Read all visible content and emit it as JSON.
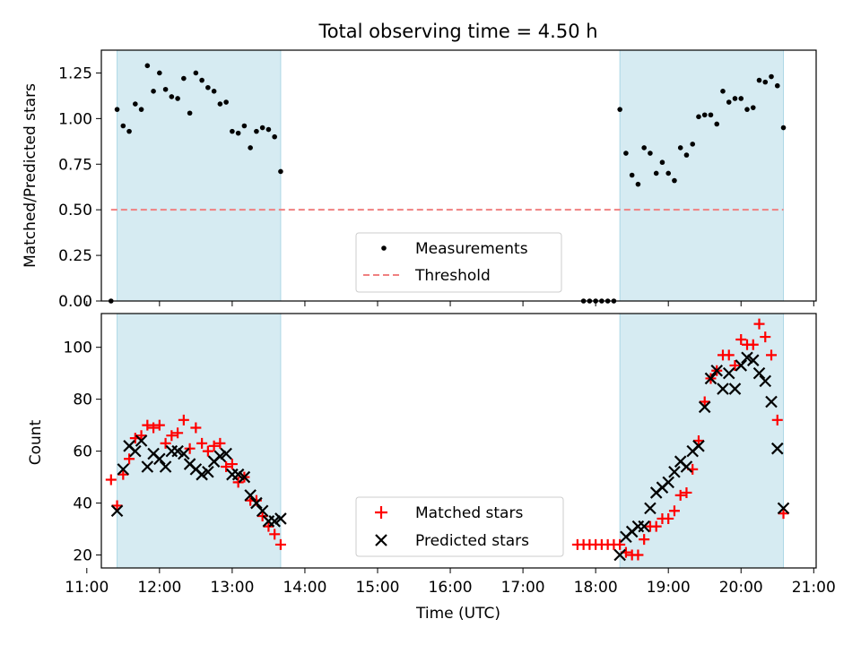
{
  "title": "Total observing time = 4.50 h",
  "chart_data": [
    {
      "type": "scatter",
      "ylabel": "Matched/Predicted stars",
      "ylim": [
        0,
        1.375
      ],
      "yticks": [
        "0.00",
        "0.25",
        "0.50",
        "0.75",
        "1.00",
        "1.25"
      ],
      "ytick_values": [
        0,
        0.25,
        0.5,
        0.75,
        1.0,
        1.25
      ],
      "xlim": [
        "11:12",
        "21:02"
      ],
      "shaded_intervals": [
        [
          "11:25",
          "13:40"
        ],
        [
          "18:20",
          "20:35"
        ]
      ],
      "threshold": {
        "y": 0.5,
        "x": [
          "11:20",
          "20:35"
        ]
      },
      "legend": {
        "position": "lower center",
        "entries": [
          "Measurements",
          "Threshold"
        ]
      },
      "series": [
        {
          "name": "Measurements",
          "x": [
            "11:20",
            "11:25",
            "11:30",
            "11:35",
            "11:40",
            "11:45",
            "11:50",
            "11:55",
            "12:00",
            "12:05",
            "12:10",
            "12:15",
            "12:20",
            "12:25",
            "12:30",
            "12:35",
            "12:40",
            "12:45",
            "12:50",
            "12:55",
            "13:00",
            "13:05",
            "13:10",
            "13:15",
            "13:20",
            "13:25",
            "13:30",
            "13:35",
            "13:40",
            "17:50",
            "17:55",
            "18:00",
            "18:05",
            "18:10",
            "18:15",
            "18:20",
            "18:25",
            "18:30",
            "18:35",
            "18:40",
            "18:45",
            "18:50",
            "18:55",
            "19:00",
            "19:05",
            "19:10",
            "19:15",
            "19:20",
            "19:25",
            "19:30",
            "19:35",
            "19:40",
            "19:45",
            "19:50",
            "19:55",
            "20:00",
            "20:05",
            "20:10",
            "20:15",
            "20:20",
            "20:25",
            "20:30",
            "20:35"
          ],
          "values": [
            0.0,
            1.05,
            0.96,
            0.93,
            1.08,
            1.05,
            1.29,
            1.15,
            1.25,
            1.16,
            1.12,
            1.11,
            1.22,
            1.03,
            1.25,
            1.21,
            1.17,
            1.15,
            1.08,
            1.09,
            0.93,
            0.92,
            0.96,
            0.84,
            0.93,
            0.95,
            0.94,
            0.9,
            0.71,
            0.0,
            0.0,
            0.0,
            0.0,
            0.0,
            0.0,
            1.05,
            0.81,
            0.69,
            0.64,
            0.84,
            0.81,
            0.7,
            0.76,
            0.7,
            0.66,
            0.84,
            0.8,
            0.86,
            1.01,
            1.02,
            1.02,
            0.97,
            1.15,
            1.09,
            1.11,
            1.11,
            1.05,
            1.06,
            1.21,
            1.2,
            1.23,
            1.18,
            0.95
          ]
        }
      ]
    },
    {
      "type": "scatter",
      "xlabel": "Time (UTC)",
      "ylabel": "Count",
      "ylim": [
        15,
        113
      ],
      "yticks": [
        "20",
        "40",
        "60",
        "80",
        "100"
      ],
      "ytick_values": [
        20,
        40,
        60,
        80,
        100
      ],
      "xticks": [
        "11:00",
        "12:00",
        "13:00",
        "14:00",
        "15:00",
        "16:00",
        "17:00",
        "18:00",
        "19:00",
        "20:00",
        "21:00"
      ],
      "xlim": [
        "11:12",
        "21:02"
      ],
      "shaded_intervals": [
        [
          "11:25",
          "13:40"
        ],
        [
          "18:20",
          "20:35"
        ]
      ],
      "legend": {
        "position": "lower center",
        "entries": [
          "Matched stars",
          "Predicted stars"
        ]
      },
      "x": [
        "11:20",
        "11:25",
        "11:30",
        "11:35",
        "11:40",
        "11:45",
        "11:50",
        "11:55",
        "12:00",
        "12:05",
        "12:10",
        "12:15",
        "12:20",
        "12:25",
        "12:30",
        "12:35",
        "12:40",
        "12:45",
        "12:50",
        "12:55",
        "13:00",
        "13:05",
        "13:10",
        "13:15",
        "13:20",
        "13:25",
        "13:30",
        "13:35",
        "13:40",
        "17:45",
        "17:50",
        "17:55",
        "18:00",
        "18:05",
        "18:10",
        "18:15",
        "18:20",
        "18:25",
        "18:30",
        "18:35",
        "18:40",
        "18:45",
        "18:50",
        "18:55",
        "19:00",
        "19:05",
        "19:10",
        "19:15",
        "19:20",
        "19:25",
        "19:30",
        "19:35",
        "19:40",
        "19:45",
        "19:50",
        "19:55",
        "20:00",
        "20:05",
        "20:10",
        "20:15",
        "20:20",
        "20:25",
        "20:30",
        "20:35"
      ],
      "series": [
        {
          "name": "Matched stars",
          "color": "#ff0000",
          "marker": "plus",
          "values": [
            49,
            39,
            51,
            57,
            65,
            66,
            70,
            69,
            70,
            63,
            66,
            67,
            72,
            61,
            69,
            63,
            60,
            62,
            63,
            54,
            55,
            48,
            50,
            41,
            41,
            35,
            31,
            28,
            24,
            24,
            24,
            24,
            24,
            24,
            24,
            24,
            24,
            21,
            20,
            20,
            26,
            31,
            31,
            34,
            34,
            37,
            43,
            44,
            53,
            64,
            79,
            88,
            91,
            97,
            97,
            93,
            103,
            101,
            101,
            109,
            104,
            97,
            72,
            36
          ]
        },
        {
          "name": "Predicted stars",
          "color": "#000000",
          "marker": "x",
          "values": [
            null,
            37,
            53,
            62,
            60,
            64,
            54,
            59,
            57,
            54,
            60,
            60,
            59,
            55,
            53,
            51,
            52,
            56,
            58,
            59,
            51,
            51,
            50,
            43,
            40,
            37,
            33,
            33,
            34,
            null,
            null,
            null,
            null,
            null,
            null,
            null,
            20,
            27,
            29,
            31,
            31,
            38,
            44,
            46,
            48,
            52,
            56,
            54,
            60,
            62,
            77,
            88,
            91,
            84,
            90,
            84,
            93,
            96,
            95,
            90,
            87,
            79,
            61,
            38
          ]
        }
      ]
    }
  ]
}
